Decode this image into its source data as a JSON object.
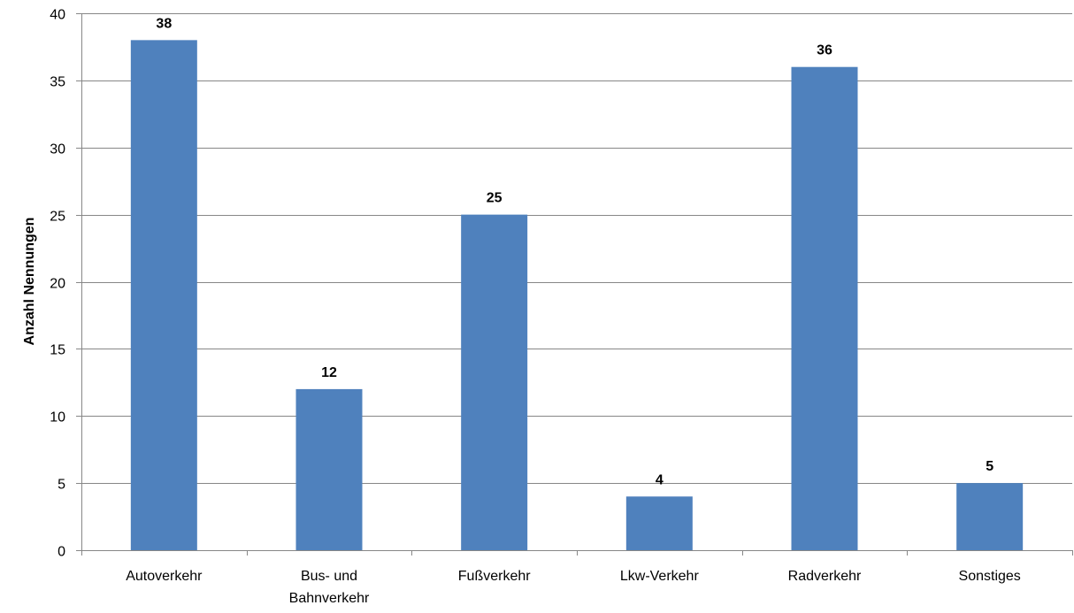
{
  "chart_data": {
    "type": "bar",
    "title": "",
    "xlabel": "",
    "ylabel": "Anzahl Nennungen",
    "ylim": [
      0,
      40
    ],
    "ytick_step": 5,
    "grid": true,
    "legend": "none",
    "bar_color": "#4F81BD",
    "categories": [
      [
        "Autoverkehr"
      ],
      [
        "Bus- und",
        "Bahnverkehr"
      ],
      [
        "Fußverkehr"
      ],
      [
        "Lkw-Verkehr"
      ],
      [
        "Radverkehr"
      ],
      [
        "Sonstiges"
      ]
    ],
    "values": [
      38,
      12,
      25,
      4,
      36,
      5
    ],
    "data_labels": [
      "38",
      "12",
      "25",
      "4",
      "36",
      "5"
    ]
  }
}
